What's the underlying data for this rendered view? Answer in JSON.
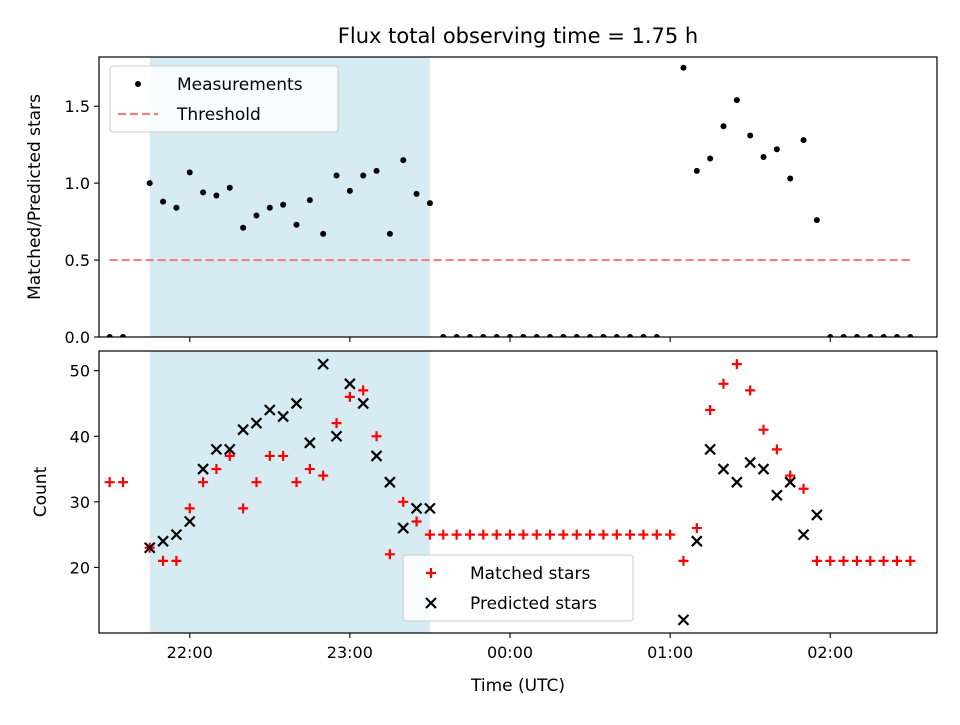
{
  "figure": {
    "title": "Flux total observing time = 1.75 h",
    "xlabel": "Time (UTC)",
    "x_tick_labels": [
      "22:00",
      "23:00",
      "00:00",
      "01:00",
      "02:00"
    ],
    "shaded_window": [
      "21:45",
      "23:30"
    ],
    "shade_color": "#add8e6"
  },
  "chart_data": [
    {
      "type": "scatter",
      "ylabel": "Matched/Predicted stars",
      "ylim": [
        0,
        1.82
      ],
      "y_ticks": [
        "0.0",
        "0.5",
        "1.0",
        "1.5"
      ],
      "legend": {
        "placement": "top-left",
        "entries": [
          "Measurements",
          "Threshold"
        ]
      },
      "threshold": {
        "name": "Threshold",
        "y": 0.5,
        "x_start": "21:30",
        "x_end": "02:30",
        "color": "#f08080",
        "style": "dashed"
      },
      "series": [
        {
          "name": "Measurements",
          "color": "#000000",
          "marker": "dot",
          "x": [
            "21:30",
            "21:35",
            "21:45",
            "21:50",
            "21:55",
            "22:00",
            "22:05",
            "22:10",
            "22:15",
            "22:20",
            "22:25",
            "22:30",
            "22:35",
            "22:40",
            "22:45",
            "22:50",
            "22:55",
            "23:00",
            "23:05",
            "23:10",
            "23:15",
            "23:20",
            "23:25",
            "23:30",
            "23:35",
            "23:40",
            "23:45",
            "23:50",
            "23:55",
            "00:00",
            "00:05",
            "00:10",
            "00:15",
            "00:20",
            "00:25",
            "00:30",
            "00:35",
            "00:40",
            "00:45",
            "00:50",
            "00:55",
            "01:05",
            "01:10",
            "01:15",
            "01:20",
            "01:25",
            "01:30",
            "01:35",
            "01:40",
            "01:45",
            "01:50",
            "01:55",
            "02:00",
            "02:05",
            "02:10",
            "02:15",
            "02:20",
            "02:25",
            "02:30"
          ],
          "y": [
            0,
            0,
            1.0,
            0.88,
            0.84,
            1.07,
            0.94,
            0.92,
            0.97,
            0.71,
            0.79,
            0.84,
            0.86,
            0.73,
            0.89,
            0.67,
            1.05,
            0.95,
            1.05,
            1.08,
            0.67,
            1.15,
            0.93,
            0.87,
            0,
            0,
            0,
            0,
            0,
            0,
            0,
            0,
            0,
            0,
            0,
            0,
            0,
            0,
            0,
            0,
            0,
            1.75,
            1.08,
            1.16,
            1.37,
            1.54,
            1.31,
            1.17,
            1.22,
            1.03,
            1.28,
            0.76,
            0,
            0,
            0,
            0,
            0,
            0,
            0
          ]
        }
      ]
    },
    {
      "type": "scatter",
      "ylabel": "Count",
      "ylim": [
        10,
        53
      ],
      "y_ticks": [
        "20",
        "30",
        "40",
        "50"
      ],
      "legend": {
        "placement": "bottom-center",
        "entries": [
          "Matched stars",
          "Predicted stars"
        ]
      },
      "series": [
        {
          "name": "Matched stars",
          "color": "#ff0000",
          "marker": "plus",
          "x": [
            "21:30",
            "21:35",
            "21:45",
            "21:50",
            "21:55",
            "22:00",
            "22:05",
            "22:10",
            "22:15",
            "22:20",
            "22:25",
            "22:30",
            "22:35",
            "22:40",
            "22:45",
            "22:50",
            "22:55",
            "23:00",
            "23:05",
            "23:10",
            "23:15",
            "23:20",
            "23:25",
            "23:30",
            "23:35",
            "23:40",
            "23:45",
            "23:50",
            "23:55",
            "00:00",
            "00:05",
            "00:10",
            "00:15",
            "00:20",
            "00:25",
            "00:30",
            "00:35",
            "00:40",
            "00:45",
            "00:50",
            "00:55",
            "01:00",
            "01:05",
            "01:10",
            "01:15",
            "01:20",
            "01:25",
            "01:30",
            "01:35",
            "01:40",
            "01:45",
            "01:50",
            "01:55",
            "02:00",
            "02:05",
            "02:10",
            "02:15",
            "02:20",
            "02:25",
            "02:30"
          ],
          "y": [
            33,
            33,
            23,
            21,
            21,
            29,
            33,
            35,
            37,
            29,
            33,
            37,
            37,
            33,
            35,
            34,
            42,
            46,
            47,
            40,
            22,
            30,
            27,
            25,
            25,
            25,
            25,
            25,
            25,
            25,
            25,
            25,
            25,
            25,
            25,
            25,
            25,
            25,
            25,
            25,
            25,
            25,
            21,
            26,
            44,
            48,
            51,
            47,
            41,
            38,
            34,
            32,
            21,
            21,
            21,
            21,
            21,
            21,
            21,
            21
          ]
        },
        {
          "name": "Predicted stars",
          "color": "#000000",
          "marker": "x",
          "x": [
            "21:45",
            "21:50",
            "21:55",
            "22:00",
            "22:05",
            "22:10",
            "22:15",
            "22:20",
            "22:25",
            "22:30",
            "22:35",
            "22:40",
            "22:45",
            "22:50",
            "22:55",
            "23:00",
            "23:05",
            "23:10",
            "23:15",
            "23:20",
            "23:25",
            "23:30",
            "01:05",
            "01:10",
            "01:15",
            "01:20",
            "01:25",
            "01:30",
            "01:35",
            "01:40",
            "01:45",
            "01:50",
            "01:55"
          ],
          "y": [
            23,
            24,
            25,
            27,
            35,
            38,
            38,
            41,
            42,
            44,
            43,
            45,
            39,
            51,
            40,
            48,
            45,
            37,
            33,
            26,
            29,
            29,
            12,
            24,
            38,
            35,
            33,
            36,
            35,
            31,
            33,
            25,
            28
          ]
        }
      ]
    }
  ]
}
